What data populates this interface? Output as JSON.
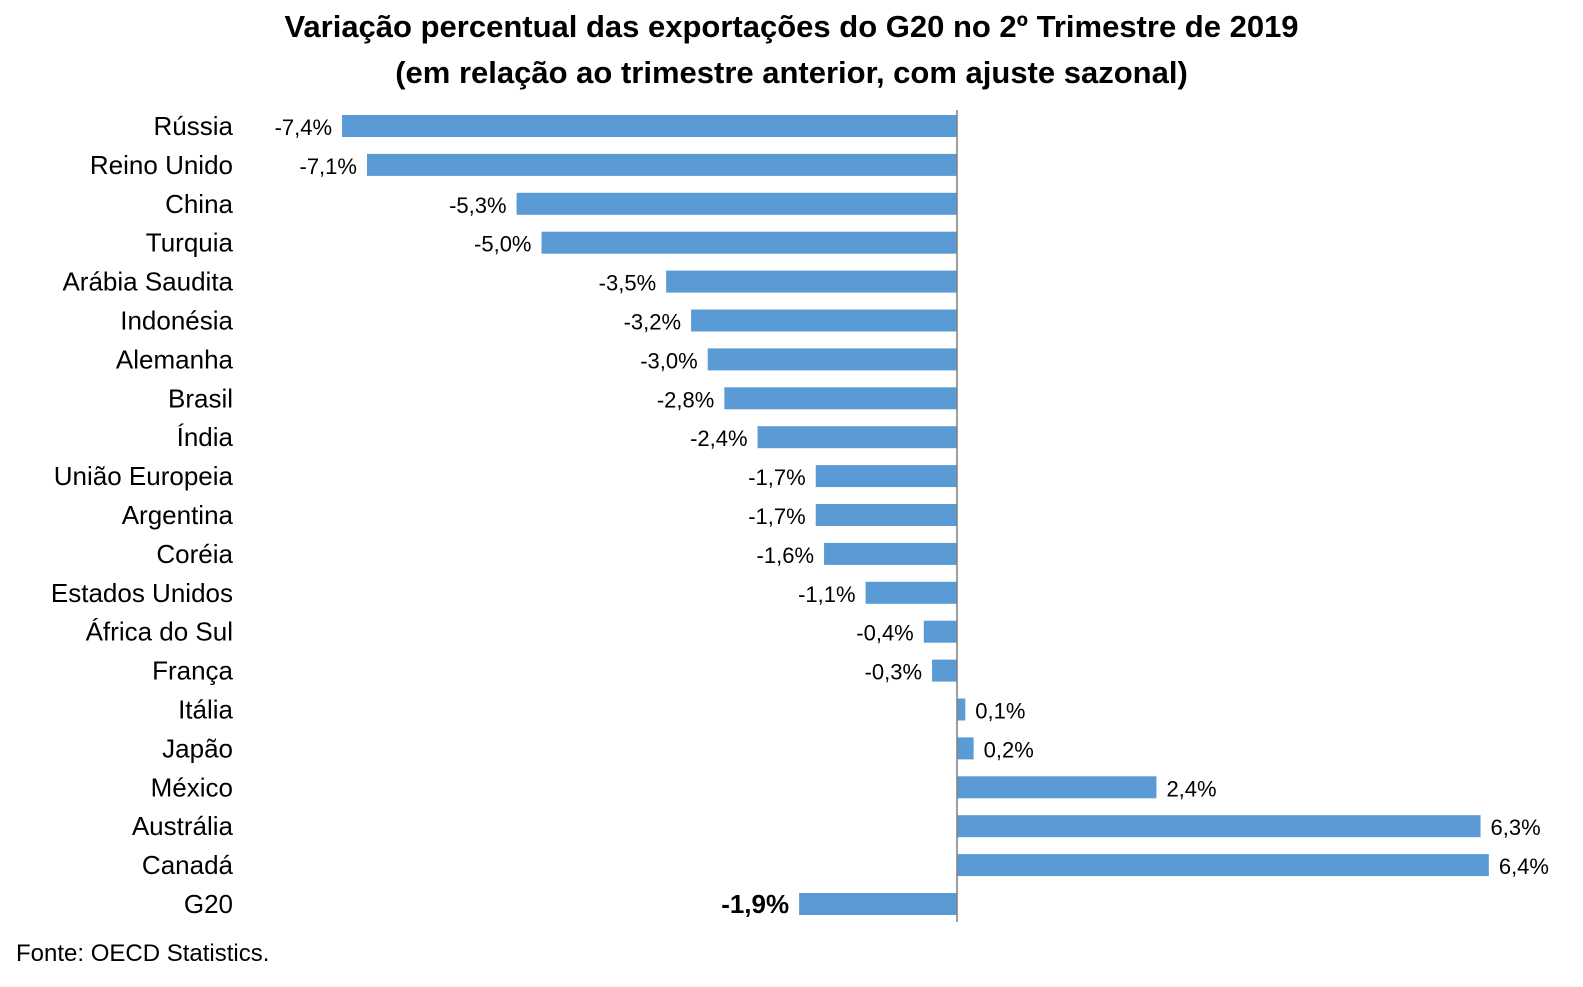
{
  "chart_data": {
    "type": "bar",
    "orientation": "horizontal",
    "title": "Variação percentual das exportações do G20 no 2º Trimestre de 2019",
    "subtitle": "(em relação ao trimestre anterior, com ajuste sazonal)",
    "categories": [
      "Rússia",
      "Reino Unido",
      "China",
      "Turquia",
      "Arábia Saudita",
      "Indonésia",
      "Alemanha",
      "Brasil",
      "Índia",
      "União Europeia",
      "Argentina",
      "Coréia",
      "Estados Unidos",
      "África do Sul",
      "França",
      "Itália",
      "Japão",
      "México",
      "Austrália",
      "Canadá",
      "G20"
    ],
    "values": [
      -7.4,
      -7.1,
      -5.3,
      -5.0,
      -3.5,
      -3.2,
      -3.0,
      -2.8,
      -2.4,
      -1.7,
      -1.7,
      -1.6,
      -1.1,
      -0.4,
      -0.3,
      0.1,
      0.2,
      2.4,
      6.3,
      6.4,
      -1.9
    ],
    "data_labels": [
      "-7,4%",
      "-7,1%",
      "-5,3%",
      "-5,0%",
      "-3,5%",
      "-3,2%",
      "-3,0%",
      "-2,8%",
      "-2,4%",
      "-1,7%",
      "-1,7%",
      "-1,6%",
      "-1,1%",
      "-0,4%",
      "-0,3%",
      "0,1%",
      "0,2%",
      "2,4%",
      "6,3%",
      "6,4%",
      "-1,9%"
    ],
    "bold_labels": [
      "-1,9%"
    ],
    "bar_color": "#5B9BD5",
    "xlim": [
      -7.4,
      6.4
    ],
    "grid": false,
    "legend": "none"
  },
  "source": "Fonte: OECD Statistics."
}
